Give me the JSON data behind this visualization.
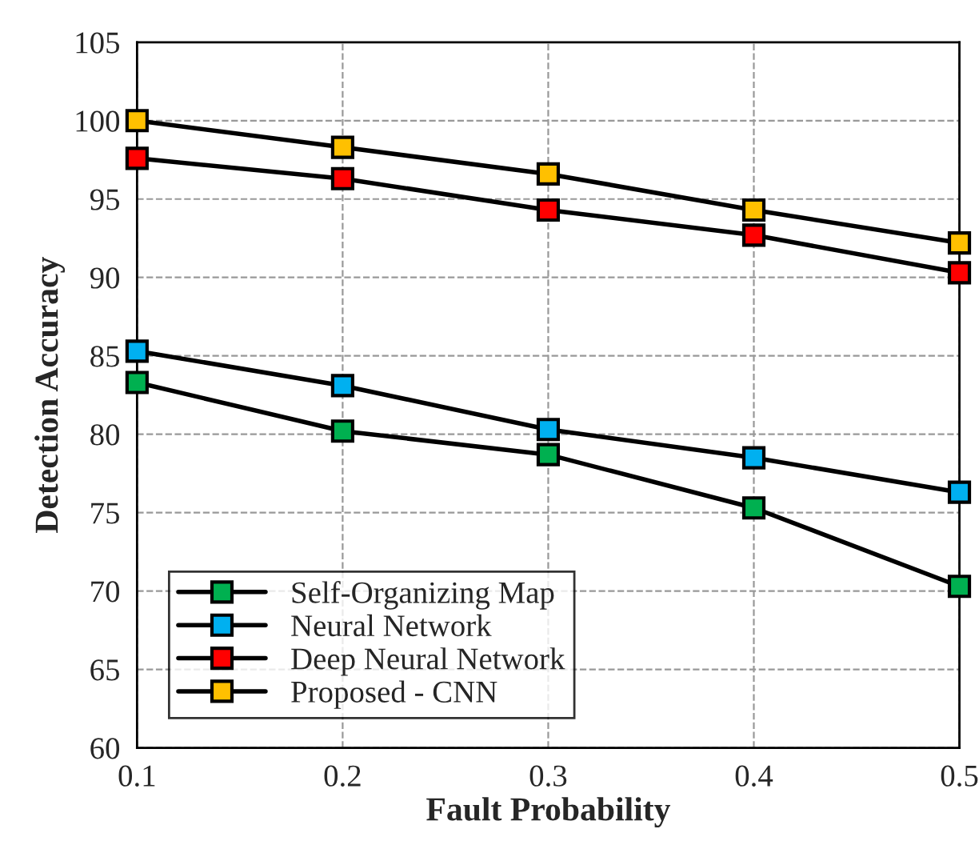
{
  "chart_data": {
    "type": "line",
    "xlabel": "Fault Probability",
    "ylabel": "Detection Accuracy",
    "x": [
      0.1,
      0.2,
      0.3,
      0.4,
      0.5
    ],
    "series": [
      {
        "name": "Self-Organizing Map",
        "color": "#00b050",
        "values": [
          83.3,
          80.2,
          78.7,
          75.3,
          70.3
        ]
      },
      {
        "name": "Neural Network",
        "color": "#00b0f0",
        "values": [
          85.3,
          83.1,
          80.3,
          78.5,
          76.3
        ]
      },
      {
        "name": "Deep Neural Network",
        "color": "#ff0000",
        "values": [
          97.6,
          96.3,
          94.3,
          92.7,
          90.3
        ]
      },
      {
        "name": "Proposed - CNN",
        "color": "#ffc000",
        "values": [
          100,
          98.3,
          96.6,
          94.3,
          92.2
        ]
      }
    ],
    "xlim": [
      0.1,
      0.5
    ],
    "xticks": [
      0.1,
      0.2,
      0.3,
      0.4,
      0.5
    ],
    "ylim": [
      60,
      105
    ],
    "yticks": [
      60,
      65,
      70,
      75,
      80,
      85,
      90,
      95,
      100,
      105
    ],
    "grid": true,
    "legend": "bottom left",
    "marker": "square",
    "line_style": "solid"
  }
}
